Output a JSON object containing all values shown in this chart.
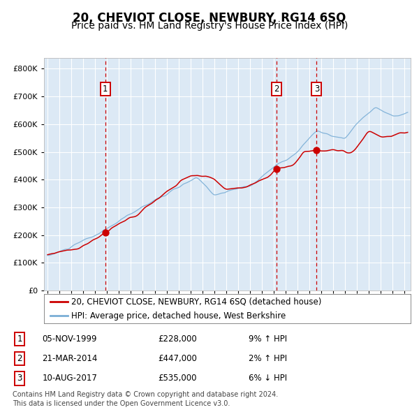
{
  "title": "20, CHEVIOT CLOSE, NEWBURY, RG14 6SQ",
  "subtitle": "Price paid vs. HM Land Registry's House Price Index (HPI)",
  "legend_line1": "20, CHEVIOT CLOSE, NEWBURY, RG14 6SQ (detached house)",
  "legend_line2": "HPI: Average price, detached house, West Berkshire",
  "footer1": "Contains HM Land Registry data © Crown copyright and database right 2024.",
  "footer2": "This data is licensed under the Open Government Licence v3.0.",
  "transactions": [
    {
      "num": 1,
      "date": "05-NOV-1999",
      "price": 228000,
      "rel": "9% ↑ HPI",
      "date_val": 1999.854
    },
    {
      "num": 2,
      "date": "21-MAR-2014",
      "price": 447000,
      "rel": "2% ↑ HPI",
      "date_val": 2014.219
    },
    {
      "num": 3,
      "date": "10-AUG-2017",
      "price": 535000,
      "rel": "6% ↓ HPI",
      "date_val": 2017.608
    }
  ],
  "y_ticks": [
    0,
    100000,
    200000,
    300000,
    400000,
    500000,
    600000,
    700000,
    800000
  ],
  "y_labels": [
    "£0",
    "£100K",
    "£200K",
    "£300K",
    "£400K",
    "£500K",
    "£600K",
    "£700K",
    "£800K"
  ],
  "ylim": [
    0,
    840000
  ],
  "xlim_start": 1994.7,
  "xlim_end": 2025.5,
  "red_color": "#cc0000",
  "blue_color": "#7aaed6",
  "bg_color": "#dce9f5",
  "grid_color": "#ffffff",
  "title_fontsize": 12,
  "subtitle_fontsize": 10,
  "tick_fontsize": 8,
  "legend_fontsize": 8.5,
  "footer_fontsize": 7
}
